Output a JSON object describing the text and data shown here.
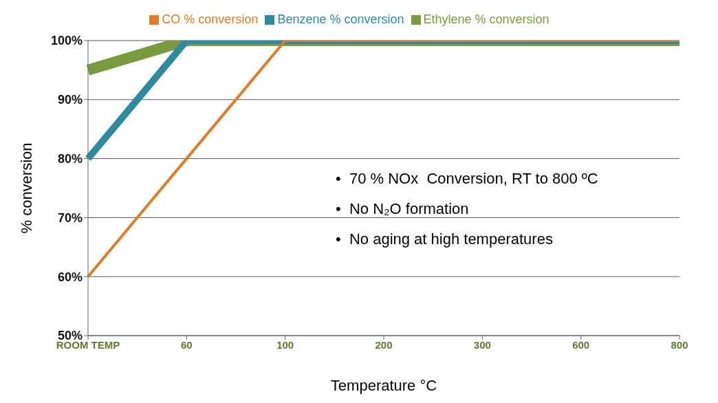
{
  "chart_data": {
    "type": "line",
    "xlabel": "Temperature °C",
    "ylabel": "% conversion",
    "categories": [
      "ROOM TEMP",
      "60",
      "100",
      "200",
      "300",
      "600",
      "800"
    ],
    "series": [
      {
        "name": "CO % conversion",
        "color": "#e07b28",
        "values": [
          60,
          80,
          100,
          100,
          100,
          100,
          100
        ]
      },
      {
        "name": "Benzene % conversion",
        "color": "#2e8a9e",
        "values": [
          80,
          100,
          100,
          100,
          100,
          100,
          100
        ]
      },
      {
        "name": "Ethylene % conversion",
        "color": "#7a9a40",
        "values": [
          95,
          100,
          100,
          100,
          100,
          100,
          100
        ]
      }
    ],
    "ylim": [
      50,
      100
    ],
    "yticks": [
      {
        "value": 50,
        "label": "50%"
      },
      {
        "value": 60,
        "label": "60%"
      },
      {
        "value": 70,
        "label": "70%"
      },
      {
        "value": 80,
        "label": "80%"
      },
      {
        "value": 90,
        "label": "90%"
      },
      {
        "value": 100,
        "label": "100%"
      }
    ],
    "grid": "y",
    "legend": "top",
    "marker": "none",
    "line_style": "solid",
    "annotations": [
      "•  70 % NOx  Conversion, RT to 800 ºC",
      "•  No N₂O formation",
      "•  No aging at high temperatures"
    ]
  }
}
